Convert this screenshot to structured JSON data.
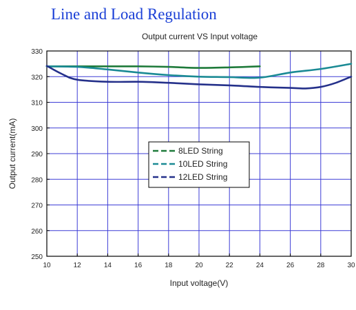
{
  "heading": "Line and Load Regulation",
  "chart_data": {
    "type": "line",
    "title": "Output current VS Input voltage",
    "xlabel": "Input voltage(V)",
    "ylabel": "Output current(mA)",
    "xlim": [
      10,
      30
    ],
    "ylim": [
      250,
      330
    ],
    "xticks": [
      10,
      12,
      14,
      16,
      18,
      20,
      22,
      24,
      26,
      28,
      30
    ],
    "yticks": [
      250,
      260,
      270,
      280,
      290,
      300,
      310,
      320,
      330
    ],
    "grid": true,
    "legend_position": "center-left",
    "series": [
      {
        "name": "8LED String",
        "color": "#1e7a3a",
        "x": [
          10,
          12,
          14,
          16,
          18,
          20,
          22,
          24
        ],
        "y": [
          324,
          324,
          324,
          324,
          323.8,
          323.4,
          323.6,
          324
        ]
      },
      {
        "name": "10LED String",
        "color": "#1a8a94",
        "x": [
          10,
          12,
          14,
          16,
          18,
          20,
          22,
          24,
          26,
          28,
          30
        ],
        "y": [
          324,
          323.8,
          322.8,
          321.6,
          320.6,
          320,
          319.8,
          319.6,
          321.6,
          323,
          325
        ]
      },
      {
        "name": "12LED String",
        "color": "#24308a",
        "x": [
          10,
          11,
          12,
          14,
          16,
          18,
          20,
          22,
          24,
          26,
          27,
          28,
          29,
          30
        ],
        "y": [
          324.2,
          321,
          318.8,
          318,
          318,
          317.6,
          317,
          316.6,
          316,
          315.6,
          315.4,
          316,
          317.6,
          320
        ]
      }
    ]
  }
}
